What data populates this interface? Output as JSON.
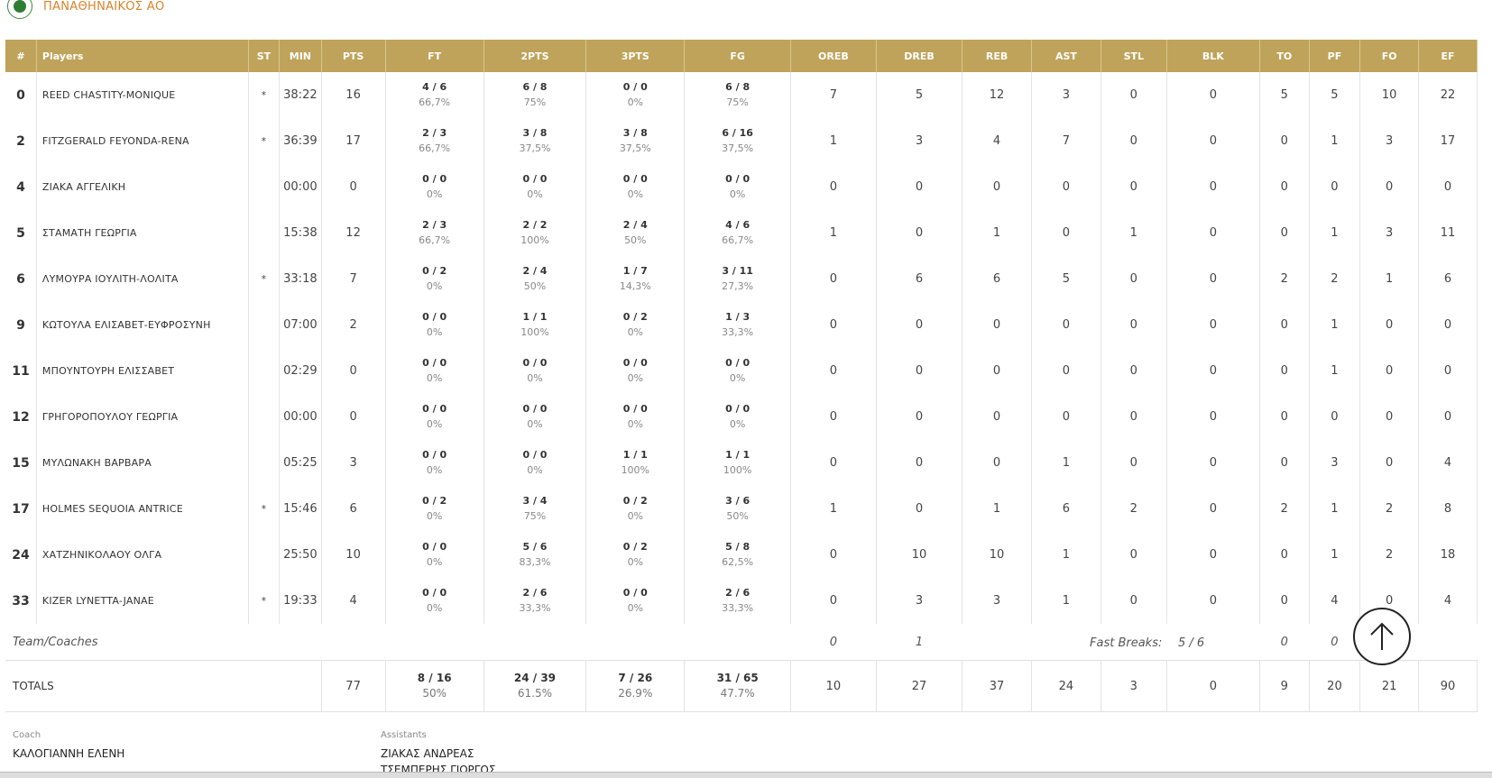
{
  "team": {
    "name": "ΠΑΝΑΘΗΝΑΙΚΟΣ ΑΟ",
    "logo_icon": "team-logo-icon"
  },
  "headers": [
    "#",
    "Players",
    "ST",
    "MIN",
    "PTS",
    "FT",
    "2PTS",
    "3PTS",
    "FG",
    "OREB",
    "DREB",
    "REB",
    "AST",
    "STL",
    "BLK",
    "TO",
    "PF",
    "FO",
    "EF"
  ],
  "players": [
    {
      "num": "0",
      "name": "REED CHASTITY-MONIQUE",
      "st": "*",
      "min": "38:22",
      "pts": "16",
      "ft": "4 / 6",
      "ft_pct": "66,7%",
      "p2": "6 / 8",
      "p2_pct": "75%",
      "p3": "0 / 0",
      "p3_pct": "0%",
      "fg": "6 / 8",
      "fg_pct": "75%",
      "oreb": "7",
      "dreb": "5",
      "reb": "12",
      "ast": "3",
      "stl": "0",
      "blk": "0",
      "to": "5",
      "pf": "5",
      "fo": "10",
      "ef": "22"
    },
    {
      "num": "2",
      "name": "FITZGERALD FEYONDA-RENA",
      "st": "*",
      "min": "36:39",
      "pts": "17",
      "ft": "2 / 3",
      "ft_pct": "66,7%",
      "p2": "3 / 8",
      "p2_pct": "37,5%",
      "p3": "3 / 8",
      "p3_pct": "37,5%",
      "fg": "6 / 16",
      "fg_pct": "37,5%",
      "oreb": "1",
      "dreb": "3",
      "reb": "4",
      "ast": "7",
      "stl": "0",
      "blk": "0",
      "to": "0",
      "pf": "1",
      "fo": "3",
      "ef": "17"
    },
    {
      "num": "4",
      "name": "ΖΙΑΚΑ ΑΓΓΕΛΙΚΗ",
      "st": "",
      "min": "00:00",
      "pts": "0",
      "ft": "0 / 0",
      "ft_pct": "0%",
      "p2": "0 / 0",
      "p2_pct": "0%",
      "p3": "0 / 0",
      "p3_pct": "0%",
      "fg": "0 / 0",
      "fg_pct": "0%",
      "oreb": "0",
      "dreb": "0",
      "reb": "0",
      "ast": "0",
      "stl": "0",
      "blk": "0",
      "to": "0",
      "pf": "0",
      "fo": "0",
      "ef": "0"
    },
    {
      "num": "5",
      "name": "ΣΤΑΜΑΤΗ ΓΕΩΡΓΙΑ",
      "st": "",
      "min": "15:38",
      "pts": "12",
      "ft": "2 / 3",
      "ft_pct": "66,7%",
      "p2": "2 / 2",
      "p2_pct": "100%",
      "p3": "2 / 4",
      "p3_pct": "50%",
      "fg": "4 / 6",
      "fg_pct": "66,7%",
      "oreb": "1",
      "dreb": "0",
      "reb": "1",
      "ast": "0",
      "stl": "1",
      "blk": "0",
      "to": "0",
      "pf": "1",
      "fo": "3",
      "ef": "11"
    },
    {
      "num": "6",
      "name": "ΛΥΜΟΥΡΑ ΙΟΥΛΙΤΗ-ΛΟΛΙΤΑ",
      "st": "*",
      "min": "33:18",
      "pts": "7",
      "ft": "0 / 2",
      "ft_pct": "0%",
      "p2": "2 / 4",
      "p2_pct": "50%",
      "p3": "1 / 7",
      "p3_pct": "14,3%",
      "fg": "3 / 11",
      "fg_pct": "27,3%",
      "oreb": "0",
      "dreb": "6",
      "reb": "6",
      "ast": "5",
      "stl": "0",
      "blk": "0",
      "to": "2",
      "pf": "2",
      "fo": "1",
      "ef": "6"
    },
    {
      "num": "9",
      "name": "ΚΩΤΟΥΛΑ ΕΛΙΣΑΒΕΤ-ΕΥΦΡΟΣΥΝΗ",
      "st": "",
      "min": "07:00",
      "pts": "2",
      "ft": "0 / 0",
      "ft_pct": "0%",
      "p2": "1 / 1",
      "p2_pct": "100%",
      "p3": "0 / 2",
      "p3_pct": "0%",
      "fg": "1 / 3",
      "fg_pct": "33,3%",
      "oreb": "0",
      "dreb": "0",
      "reb": "0",
      "ast": "0",
      "stl": "0",
      "blk": "0",
      "to": "0",
      "pf": "1",
      "fo": "0",
      "ef": "0"
    },
    {
      "num": "11",
      "name": "ΜΠΟΥΝΤΟΥΡΗ ΕΛΙΣΣΑΒΕΤ",
      "st": "",
      "min": "02:29",
      "pts": "0",
      "ft": "0 / 0",
      "ft_pct": "0%",
      "p2": "0 / 0",
      "p2_pct": "0%",
      "p3": "0 / 0",
      "p3_pct": "0%",
      "fg": "0 / 0",
      "fg_pct": "0%",
      "oreb": "0",
      "dreb": "0",
      "reb": "0",
      "ast": "0",
      "stl": "0",
      "blk": "0",
      "to": "0",
      "pf": "1",
      "fo": "0",
      "ef": "0"
    },
    {
      "num": "12",
      "name": "ΓΡΗΓΟΡΟΠΟΥΛΟΥ ΓΕΩΡΓΙΑ",
      "st": "",
      "min": "00:00",
      "pts": "0",
      "ft": "0 / 0",
      "ft_pct": "0%",
      "p2": "0 / 0",
      "p2_pct": "0%",
      "p3": "0 / 0",
      "p3_pct": "0%",
      "fg": "0 / 0",
      "fg_pct": "0%",
      "oreb": "0",
      "dreb": "0",
      "reb": "0",
      "ast": "0",
      "stl": "0",
      "blk": "0",
      "to": "0",
      "pf": "0",
      "fo": "0",
      "ef": "0"
    },
    {
      "num": "15",
      "name": "ΜΥΛΩΝΑΚΗ ΒΑΡΒΑΡΑ",
      "st": "",
      "min": "05:25",
      "pts": "3",
      "ft": "0 / 0",
      "ft_pct": "0%",
      "p2": "0 / 0",
      "p2_pct": "0%",
      "p3": "1 / 1",
      "p3_pct": "100%",
      "fg": "1 / 1",
      "fg_pct": "100%",
      "oreb": "0",
      "dreb": "0",
      "reb": "0",
      "ast": "1",
      "stl": "0",
      "blk": "0",
      "to": "0",
      "pf": "3",
      "fo": "0",
      "ef": "4"
    },
    {
      "num": "17",
      "name": "HOLMES SEQUOIA ANTRICE",
      "st": "*",
      "min": "15:46",
      "pts": "6",
      "ft": "0 / 2",
      "ft_pct": "0%",
      "p2": "3 / 4",
      "p2_pct": "75%",
      "p3": "0 / 2",
      "p3_pct": "0%",
      "fg": "3 / 6",
      "fg_pct": "50%",
      "oreb": "1",
      "dreb": "0",
      "reb": "1",
      "ast": "6",
      "stl": "2",
      "blk": "0",
      "to": "2",
      "pf": "1",
      "fo": "2",
      "ef": "8"
    },
    {
      "num": "24",
      "name": "ΧΑΤΖΗΝΙΚΟΛΑΟΥ ΟΛΓΑ",
      "st": "",
      "min": "25:50",
      "pts": "10",
      "ft": "0 / 0",
      "ft_pct": "0%",
      "p2": "5 / 6",
      "p2_pct": "83,3%",
      "p3": "0 / 2",
      "p3_pct": "0%",
      "fg": "5 / 8",
      "fg_pct": "62,5%",
      "oreb": "0",
      "dreb": "10",
      "reb": "10",
      "ast": "1",
      "stl": "0",
      "blk": "0",
      "to": "0",
      "pf": "1",
      "fo": "2",
      "ef": "18"
    },
    {
      "num": "33",
      "name": "KIZER LYNETTA-JANAE",
      "st": "*",
      "min": "19:33",
      "pts": "4",
      "ft": "0 / 0",
      "ft_pct": "0%",
      "p2": "2 / 6",
      "p2_pct": "33,3%",
      "p3": "0 / 0",
      "p3_pct": "0%",
      "fg": "2 / 6",
      "fg_pct": "33,3%",
      "oreb": "0",
      "dreb": "3",
      "reb": "3",
      "ast": "1",
      "stl": "0",
      "blk": "0",
      "to": "0",
      "pf": "4",
      "fo": "0",
      "ef": "4"
    }
  ],
  "team_row": {
    "label": "Team/Coaches",
    "oreb": "0",
    "dreb": "1",
    "fast_breaks_label": "Fast Breaks:",
    "fast_breaks_value": "5 / 6",
    "to": "0",
    "pf": "0"
  },
  "totals": {
    "label": "TOTALS",
    "pts": "77",
    "ft": "8 / 16",
    "ft_pct": "50%",
    "p2": "24 / 39",
    "p2_pct": "61.5%",
    "p3": "7 / 26",
    "p3_pct": "26.9%",
    "fg": "31 / 65",
    "fg_pct": "47.7%",
    "oreb": "10",
    "dreb": "27",
    "reb": "37",
    "ast": "24",
    "stl": "3",
    "blk": "0",
    "to": "9",
    "pf": "20",
    "fo": "21",
    "ef": "90"
  },
  "coach": {
    "label": "Coach",
    "name": "ΚΑΛΟΓΙΑΝΝΗ ΕΛΕΝΗ"
  },
  "assistants": {
    "label": "Assistants",
    "names": [
      "ΖΙΑΚΑΣ ΑΝΔΡΕΑΣ",
      "ΤΣΕΜΠΕΡΗΣ ΓΙΩΡΓΟΣ"
    ]
  },
  "scroll_top_icon": "arrow-up-icon"
}
